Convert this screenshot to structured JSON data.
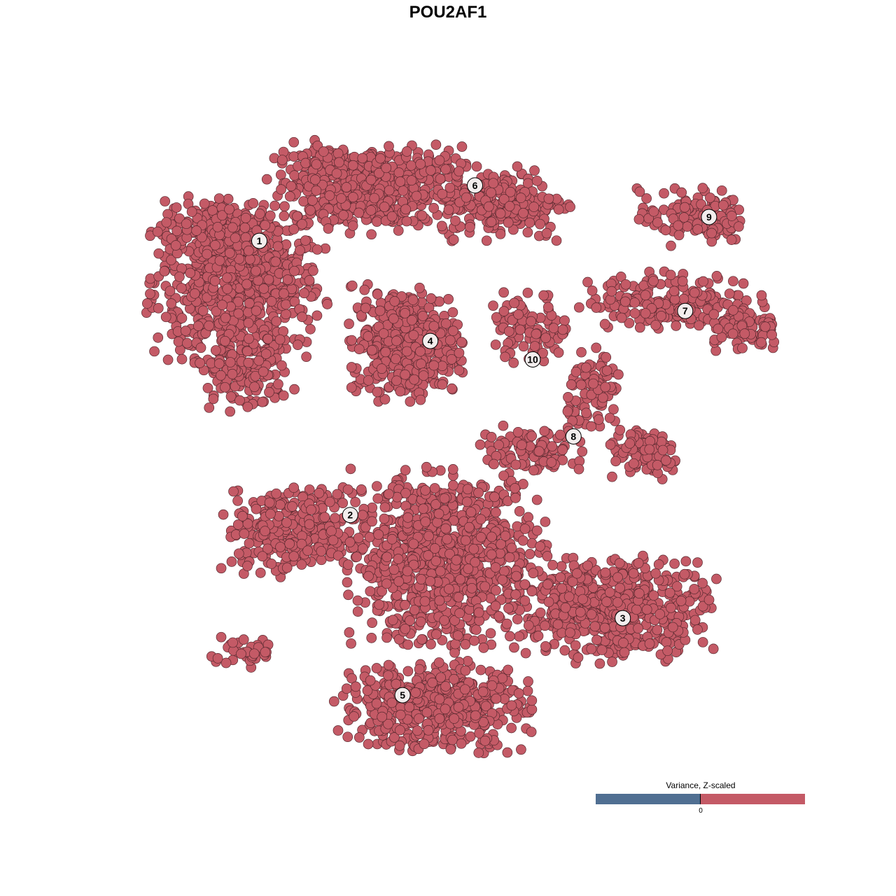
{
  "chart_data": {
    "type": "scatter",
    "title": "POU2AF1",
    "xlabel": "",
    "ylabel": "",
    "grid": false,
    "axes_visible": false,
    "point_color": "#c45a66",
    "point_edge_color": "#5a2a30",
    "clusters": [
      {
        "label": "1",
        "label_pos": [
          -24.5,
          26.9
        ],
        "regions": [
          {
            "center": [
              -27.3,
              21.8
            ],
            "spread": [
              10.9,
              10
            ],
            "n": 700
          },
          {
            "center": [
              -30.9,
              28.2
            ],
            "spread": [
              7,
              4
            ],
            "n": 120
          },
          {
            "center": [
              -26.4,
              10
            ],
            "spread": [
              6,
              5
            ],
            "n": 150
          },
          {
            "center": [
              -14.5,
              34.5
            ],
            "spread": [
              8,
              5
            ],
            "n": 250
          }
        ]
      },
      {
        "label": "6",
        "label_pos": [
          3.5,
          34.1
        ],
        "regions": [
          {
            "center": [
              -8.2,
              33.6
            ],
            "spread": [
              10,
              5.5
            ],
            "n": 350
          },
          {
            "center": [
              7.3,
              31.8
            ],
            "spread": [
              8,
              4.5
            ],
            "n": 220
          }
        ]
      },
      {
        "label": "4",
        "label_pos": [
          -2.3,
          13.9
        ],
        "regions": [
          {
            "center": [
              -5.5,
              13.6
            ],
            "spread": [
              7,
              7
            ],
            "n": 450
          }
        ]
      },
      {
        "label": "9",
        "label_pos": [
          33.9,
          30
        ],
        "regions": [
          {
            "center": [
              31.8,
              30
            ],
            "spread": [
              7,
              3.5
            ],
            "n": 120
          }
        ]
      },
      {
        "label": "7",
        "label_pos": [
          30.8,
          17.8
        ],
        "regions": [
          {
            "center": [
              29.1,
              19.1
            ],
            "spread": [
              11,
              3.5
            ],
            "n": 200
          },
          {
            "center": [
              38.2,
              15.5
            ],
            "spread": [
              5,
              2.7
            ],
            "n": 80
          }
        ]
      },
      {
        "label": "10",
        "label_pos": [
          11,
          11.5
        ],
        "regions": [
          {
            "center": [
              10.9,
              15.5
            ],
            "spread": [
              5,
              4.5
            ],
            "n": 90
          }
        ]
      },
      {
        "label": "8",
        "label_pos": [
          16.3,
          1.5
        ],
        "regions": [
          {
            "center": [
              19.1,
              7.3
            ],
            "spread": [
              3.5,
              5.5
            ],
            "n": 90
          },
          {
            "center": [
              25.5,
              -0.9
            ],
            "spread": [
              5,
              3.2
            ],
            "n": 110
          },
          {
            "center": [
              10.9,
              0
            ],
            "spread": [
              7,
              2.7
            ],
            "n": 100
          }
        ]
      },
      {
        "label": "2",
        "label_pos": [
          -12.7,
          -8.7
        ],
        "regions": [
          {
            "center": [
              -20,
              -10.9
            ],
            "spread": [
              9,
              5.5
            ],
            "n": 300
          },
          {
            "center": [
              -26.4,
              -26.4
            ],
            "spread": [
              4.5,
              2.3
            ],
            "n": 40
          }
        ]
      },
      {
        "label": "3",
        "label_pos": [
          22.7,
          -22.1
        ],
        "regions": [
          {
            "center": [
              21.8,
              -20.9
            ],
            "spread": [
              12,
              6.5
            ],
            "n": 500
          }
        ]
      },
      {
        "label": "5",
        "label_pos": [
          -5.9,
          -32.1
        ],
        "regions": [
          {
            "center": [
              -1.8,
              -33.6
            ],
            "spread": [
              12,
              5.5
            ],
            "n": 500
          },
          {
            "center": [
              0,
              -14.5
            ],
            "spread": [
              12,
              11
            ],
            "n": 900
          }
        ]
      }
    ],
    "legend": {
      "title": "Variance, Z-scaled",
      "tick_label": "0",
      "low_color": "#506f92",
      "high_color": "#c45a66",
      "placement": "bottom-right"
    }
  }
}
